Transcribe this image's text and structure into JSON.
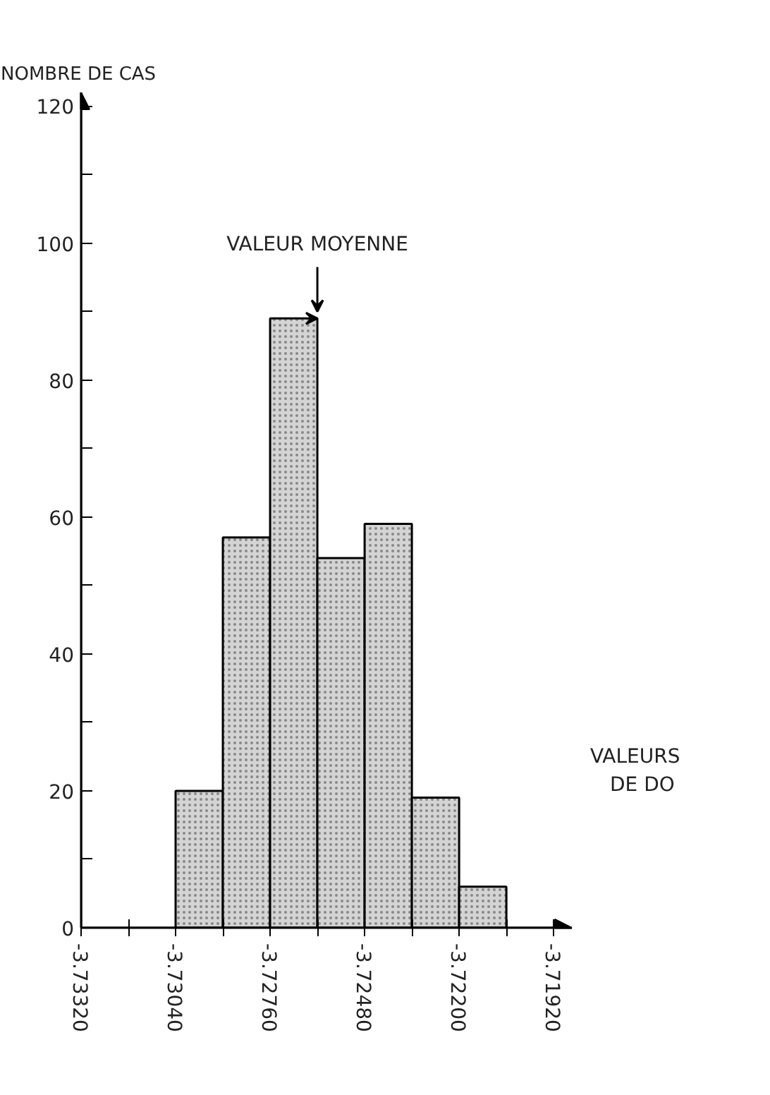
{
  "chart_data": {
    "type": "histogram",
    "xlabel": "VALEURS DE DO",
    "ylabel": "NOMBRE DE CAS",
    "bins": [
      -3.7304,
      -3.729,
      -3.7276,
      -3.7262,
      -3.7248,
      -3.7234,
      -3.722,
      -3.7206
    ],
    "values": [
      20,
      57,
      89,
      54,
      59,
      19,
      6
    ],
    "color": "#d4d4d4",
    "xlim": [
      -3.7332,
      -3.71866
    ],
    "ylim": [
      0,
      122
    ],
    "xticks": [
      {
        "value": -3.7332,
        "label": "-3.73320"
      },
      {
        "value": -3.7318,
        "label": null
      },
      {
        "value": -3.7304,
        "label": "-3.73040"
      },
      {
        "value": -3.729,
        "label": null
      },
      {
        "value": -3.7276,
        "label": "-3.72760"
      },
      {
        "value": -3.7262,
        "label": null
      },
      {
        "value": -3.7248,
        "label": "-3.72480"
      },
      {
        "value": -3.7234,
        "label": null
      },
      {
        "value": -3.722,
        "label": "-3.72200"
      },
      {
        "value": -3.7206,
        "label": null
      },
      {
        "value": -3.7192,
        "label": "-3.71920"
      }
    ],
    "yticks": [
      0,
      {
        "value": 10,
        "label": null
      },
      20,
      {
        "value": 30,
        "label": null
      },
      40,
      {
        "value": 50,
        "label": null
      },
      60,
      {
        "value": 70,
        "label": null
      },
      80,
      {
        "value": 90,
        "label": null
      },
      100,
      {
        "value": 110,
        "label": null
      },
      120
    ],
    "annotations": [
      {
        "text": "VALEUR MOYENNE",
        "x": -3.7262,
        "y": 89
      }
    ],
    "grid": false
  }
}
